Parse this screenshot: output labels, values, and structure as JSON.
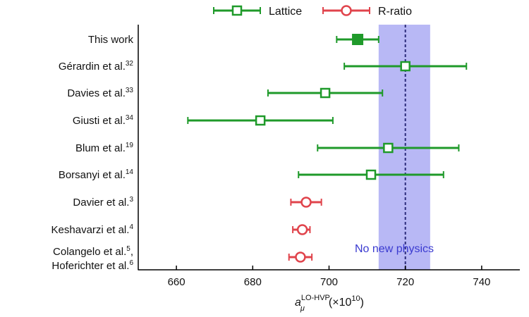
{
  "chart_data": {
    "type": "scatter",
    "subtype": "forest-plot-with-error-bars",
    "xlabel_main": "a",
    "xlabel_sub": "μ",
    "xlabel_sup": "LO-HVP",
    "xlabel_unit_pre": "(×10",
    "xlabel_unit_sup": "10",
    "xlabel_unit_post": ")",
    "xlim": [
      650,
      750
    ],
    "xticks": [
      660,
      680,
      700,
      720,
      740
    ],
    "grid": false,
    "legend_position": "top",
    "legend": [
      {
        "label": "Lattice",
        "marker": "square-open",
        "color": "#1f9a2a"
      },
      {
        "label": "R-ratio",
        "marker": "circle-open",
        "color": "#e0444c"
      }
    ],
    "rows": [
      {
        "label": "This work",
        "sup": "",
        "value": 707.5,
        "err_low": 702,
        "err_high": 713,
        "group": "Lattice",
        "filled": true
      },
      {
        "label": "Gérardin et al.",
        "sup": "32",
        "value": 720,
        "err_low": 704,
        "err_high": 736,
        "group": "Lattice",
        "filled": false
      },
      {
        "label": "Davies et al.",
        "sup": "33",
        "value": 699,
        "err_low": 684,
        "err_high": 714,
        "group": "Lattice",
        "filled": false
      },
      {
        "label": "Giusti et al.",
        "sup": "34",
        "value": 682,
        "err_low": 663,
        "err_high": 701,
        "group": "Lattice",
        "filled": false
      },
      {
        "label": "Blum et al.",
        "sup": "19",
        "value": 715.5,
        "err_low": 697,
        "err_high": 734,
        "group": "Lattice",
        "filled": false
      },
      {
        "label": "Borsanyi et al.",
        "sup": "14",
        "value": 711,
        "err_low": 692,
        "err_high": 730,
        "group": "Lattice",
        "filled": false
      },
      {
        "label": "Davier et al.",
        "sup": "3",
        "value": 694,
        "err_low": 690,
        "err_high": 698,
        "group": "R-ratio",
        "filled": false
      },
      {
        "label": "Keshavarzi et al.",
        "sup": "4",
        "value": 693,
        "err_low": 690.5,
        "err_high": 695,
        "group": "R-ratio",
        "filled": false
      },
      {
        "label": "Colangelo et al.",
        "sup": "5",
        "label_suffix": ",",
        "label2": "Hoferichter et al.",
        "sup2": "6",
        "value": 692.5,
        "err_low": 689.5,
        "err_high": 695.5,
        "group": "R-ratio",
        "filled": false
      }
    ],
    "band": {
      "low": 713,
      "high": 726.5,
      "center": 720,
      "label": "No new physics",
      "fill": "#b8b8f5",
      "line_color": "#2b2b7a",
      "label_color": "#3a3ad0"
    }
  }
}
